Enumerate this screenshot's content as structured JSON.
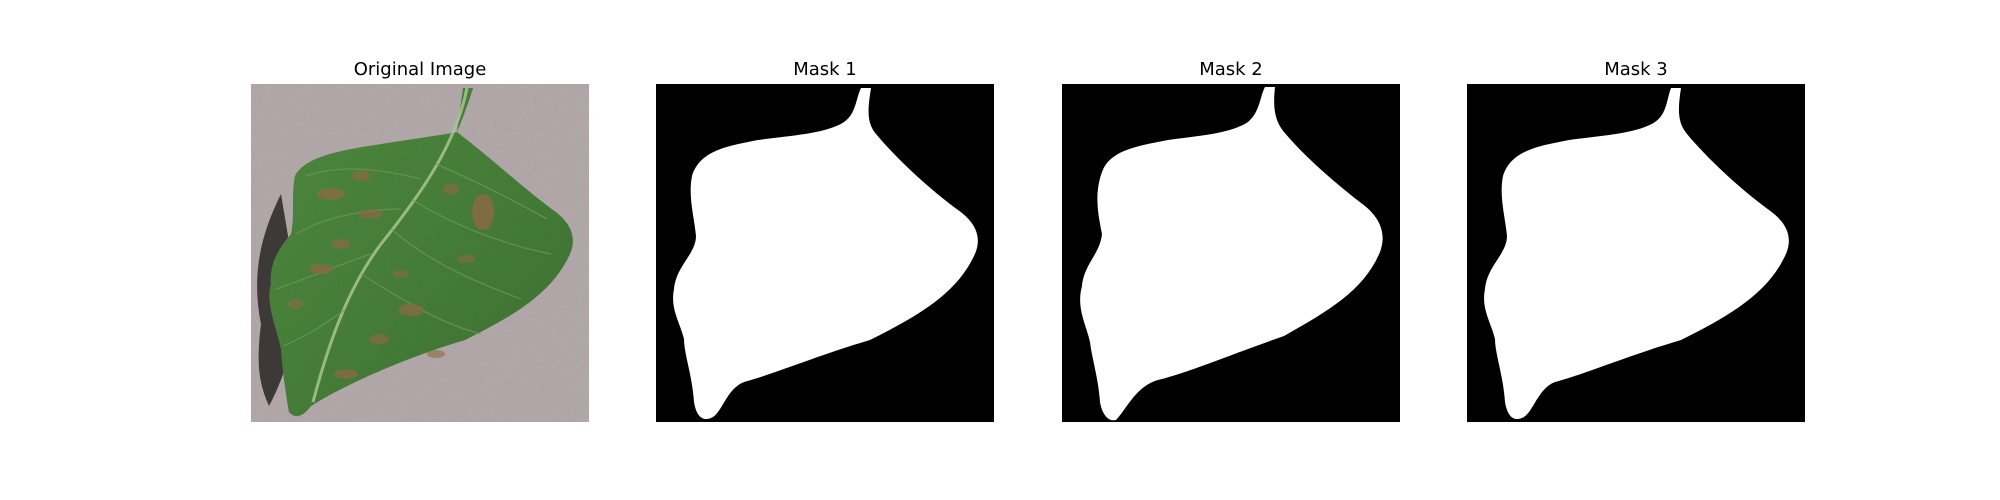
{
  "figure": {
    "panels": [
      {
        "title": "Original Image",
        "kind": "photo",
        "subject": "leaf"
      },
      {
        "title": "Mask 1",
        "kind": "mask"
      },
      {
        "title": "Mask 2",
        "kind": "mask"
      },
      {
        "title": "Mask 3",
        "kind": "mask"
      }
    ]
  },
  "colors": {
    "background": "#ffffff",
    "photo_background": "#b7adaf",
    "leaf_dark": "#2f5a2a",
    "leaf_mid": "#4e8a3e",
    "leaf_light": "#7fa86a",
    "spot": "#8a6a45",
    "mask_background": "#000000",
    "mask_foreground": "#ffffff"
  }
}
